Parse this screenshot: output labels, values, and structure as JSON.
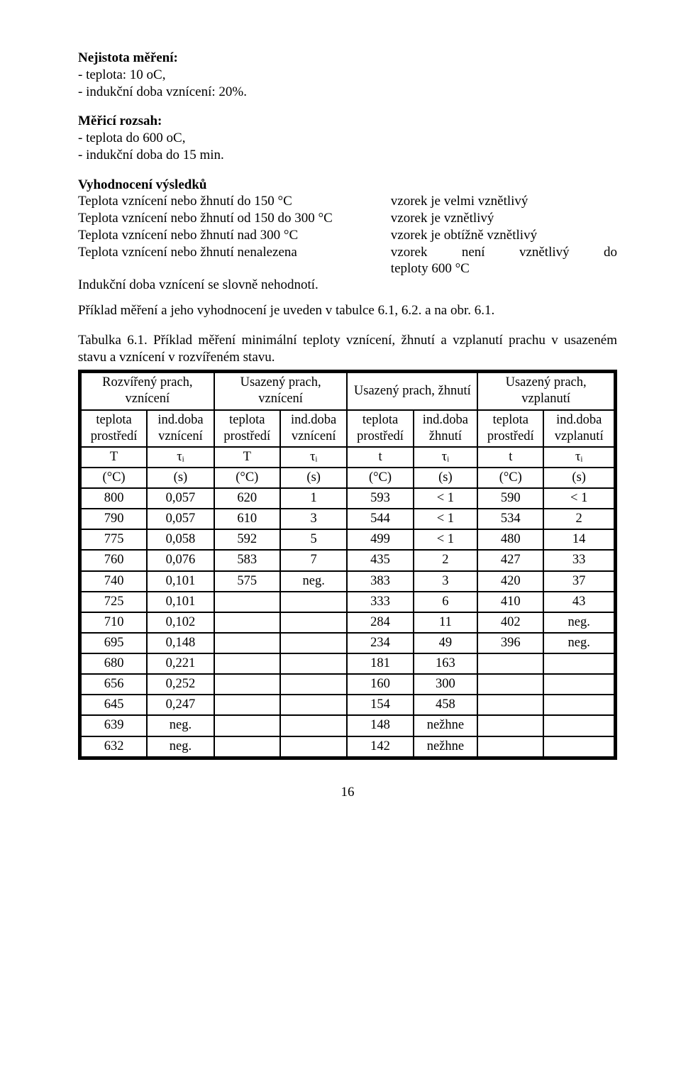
{
  "uncertainty": {
    "heading": "Nejistota měření:",
    "line1": "-  teplota: 10 oC,",
    "line2": "-  indukční doba vznícení:  20%."
  },
  "range": {
    "heading": "Měřicí rozsah:",
    "line1": "-  teplota do 600 oC,",
    "line2": "-  indukční doba do 15 min."
  },
  "eval_heading": "Vyhodnocení výsledků",
  "defs": {
    "left1": "Teplota vznícení nebo žhnutí do 150 °C",
    "right1": "vzorek je velmi vznětlivý",
    "left2": "Teplota vznícení nebo žhnutí od 150 do 300 °C",
    "right2": "vzorek je vznětlivý",
    "left3": "Teplota vznícení nebo žhnutí nad 300 °C",
    "right3": "vzorek je obtížně vznětlivý",
    "left4": "Teplota vznícení nebo žhnutí nenalezena",
    "right4a": "vzorek",
    "right4b": "není",
    "right4c": "vznětlivý",
    "right4d": "do",
    "right4_line2": "teploty 600 °C",
    "left5": "Indukční doba vznícení se slovně nehodnotí."
  },
  "para_example": "Příklad měření a jeho vyhodnocení je uveden v tabulce 6.1, 6.2. a na obr. 6.1.",
  "table_caption": "Tabulka 6.1. Příklad měření minimální teploty vznícení, žhnutí a vzplanutí prachu v usazeném stavu a vznícení v rozvířeném stavu.",
  "headers_top": [
    "Rozvířený prach, vznícení",
    "Usazený prach, vznícení",
    "Usazený prach, žhnutí",
    "Usazený prach, vzplanutí"
  ],
  "headers_sub": [
    "teplota prostředí",
    "ind.doba vznícení",
    "teplota prostředí",
    "ind.doba vznícení",
    "teplota prostředí",
    "ind.doba žhnutí",
    "teplota prostředí",
    "ind.doba vzplanutí"
  ],
  "symbols": [
    "T",
    "τᵢ",
    "T",
    "τᵢ",
    "t",
    "τᵢ",
    "t",
    "τᵢ"
  ],
  "units": [
    "(°C)",
    "(s)",
    "(°C)",
    "(s)",
    "(°C)",
    "(s)",
    "(°C)",
    "(s)"
  ],
  "rows": [
    [
      "800",
      "0,057",
      "620",
      "1",
      "593",
      "< 1",
      "590",
      "< 1"
    ],
    [
      "790",
      "0,057",
      "610",
      "3",
      "544",
      "< 1",
      "534",
      "2"
    ],
    [
      "775",
      "0,058",
      "592",
      "5",
      "499",
      "< 1",
      "480",
      "14"
    ],
    [
      "760",
      "0,076",
      "583",
      "7",
      "435",
      "2",
      "427",
      "33"
    ],
    [
      "740",
      "0,101",
      "575",
      "neg.",
      "383",
      "3",
      "420",
      "37"
    ],
    [
      "725",
      "0,101",
      "",
      "",
      "333",
      "6",
      "410",
      "43"
    ],
    [
      "710",
      "0,102",
      "",
      "",
      "284",
      "11",
      "402",
      "neg."
    ],
    [
      "695",
      "0,148",
      "",
      "",
      "234",
      "49",
      "396",
      "neg."
    ],
    [
      "680",
      "0,221",
      "",
      "",
      "181",
      "163",
      "",
      ""
    ],
    [
      "656",
      "0,252",
      "",
      "",
      "160",
      "300",
      "",
      ""
    ],
    [
      "645",
      "0,247",
      "",
      "",
      "154",
      "458",
      "",
      ""
    ],
    [
      "639",
      "neg.",
      "",
      "",
      "148",
      "nežhne",
      "",
      ""
    ],
    [
      "632",
      "neg.",
      "",
      "",
      "142",
      "nežhne",
      "",
      ""
    ]
  ],
  "pageno": "16"
}
